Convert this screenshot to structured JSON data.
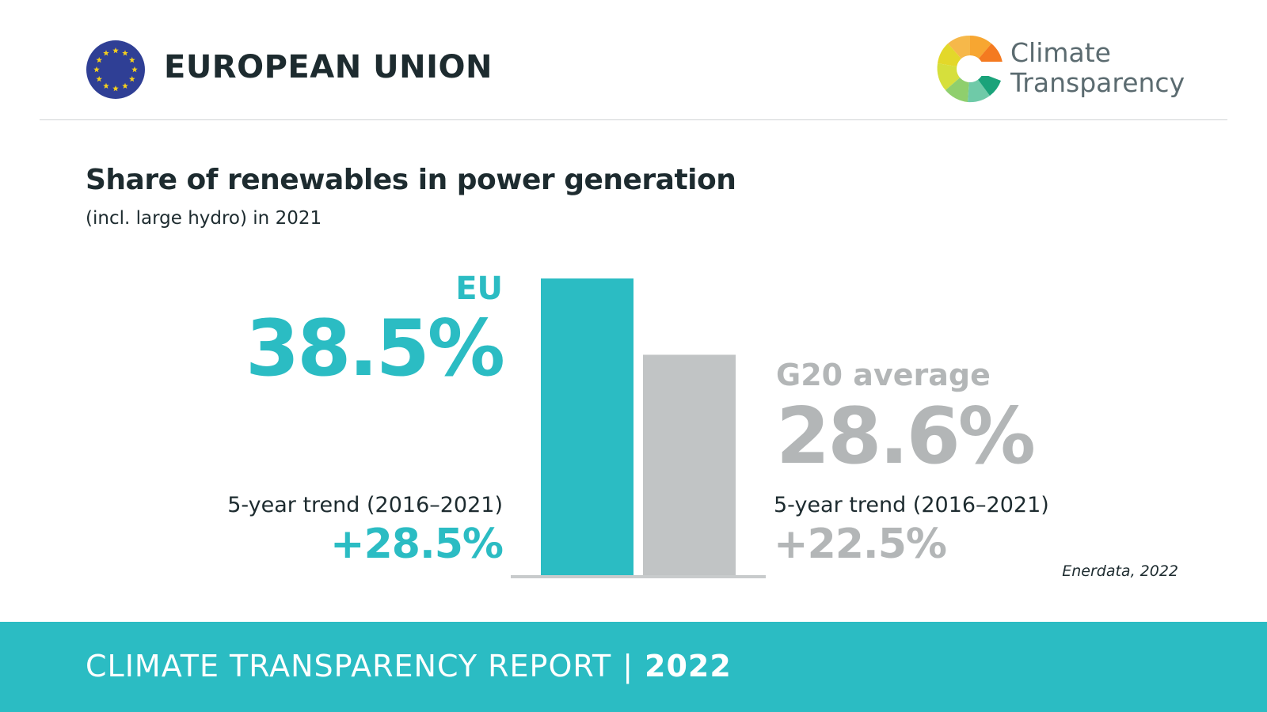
{
  "header": {
    "country": "EUROPEAN UNION",
    "logo_line1": "Climate",
    "logo_line2": "Transparency"
  },
  "title": "Share of renewables in power generation",
  "subtitle": "(incl. large hydro) in 2021",
  "eu": {
    "label": "EU",
    "value": "38.5%",
    "trend_label": "5-year trend (2016–2021)",
    "trend_value": "+28.5%"
  },
  "g20": {
    "label": "G20 average",
    "value": "28.6%",
    "trend_label": "5-year trend (2016–2021)",
    "trend_value": "+22.5%"
  },
  "source": "Enerdata, 2022",
  "footer": {
    "text": "CLIMATE TRANSPARENCY REPORT",
    "separator": "|",
    "year": "2022"
  },
  "colors": {
    "eu": "#2bbcc3",
    "g20": "#c1c4c5",
    "baseline": "#c8cbcc",
    "footer": "#2bbcc3"
  },
  "chart_data": {
    "type": "bar",
    "categories": [
      "EU",
      "G20 average"
    ],
    "values": [
      38.5,
      28.6
    ],
    "title": "Share of renewables in power generation",
    "xlabel": "",
    "ylabel": "",
    "ylim": [
      0,
      38.5
    ]
  }
}
